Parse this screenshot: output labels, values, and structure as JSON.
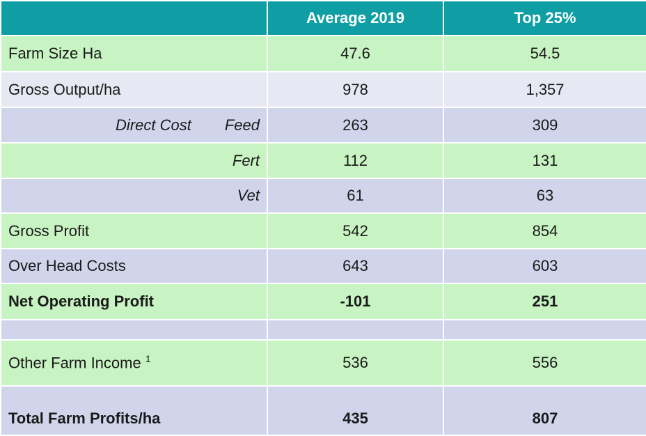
{
  "table": {
    "header": [
      "Average 2019",
      "Top 25%"
    ],
    "rows": [
      {
        "label": "Farm Size Ha",
        "values": [
          "47.6",
          "54.5"
        ]
      },
      {
        "label": "Gross Output/ha",
        "values": [
          "978",
          "1,357"
        ]
      },
      {
        "group": "Direct Cost",
        "label": "Feed",
        "values": [
          "263",
          "309"
        ]
      },
      {
        "label": "Fert",
        "values": [
          "112",
          "131"
        ]
      },
      {
        "label": "Vet",
        "values": [
          "61",
          "63"
        ]
      },
      {
        "label": "Gross Profit",
        "values": [
          "542",
          "854"
        ]
      },
      {
        "label": "Over Head Costs",
        "values": [
          "643",
          "603"
        ]
      },
      {
        "label": "Net Operating Profit",
        "values": [
          "-101",
          "251"
        ]
      },
      {
        "label": "Other Farm Income",
        "note": "1",
        "values": [
          "536",
          "556"
        ]
      },
      {
        "label": "Total Farm Profits/ha",
        "values": [
          "435",
          "807"
        ]
      }
    ]
  }
}
